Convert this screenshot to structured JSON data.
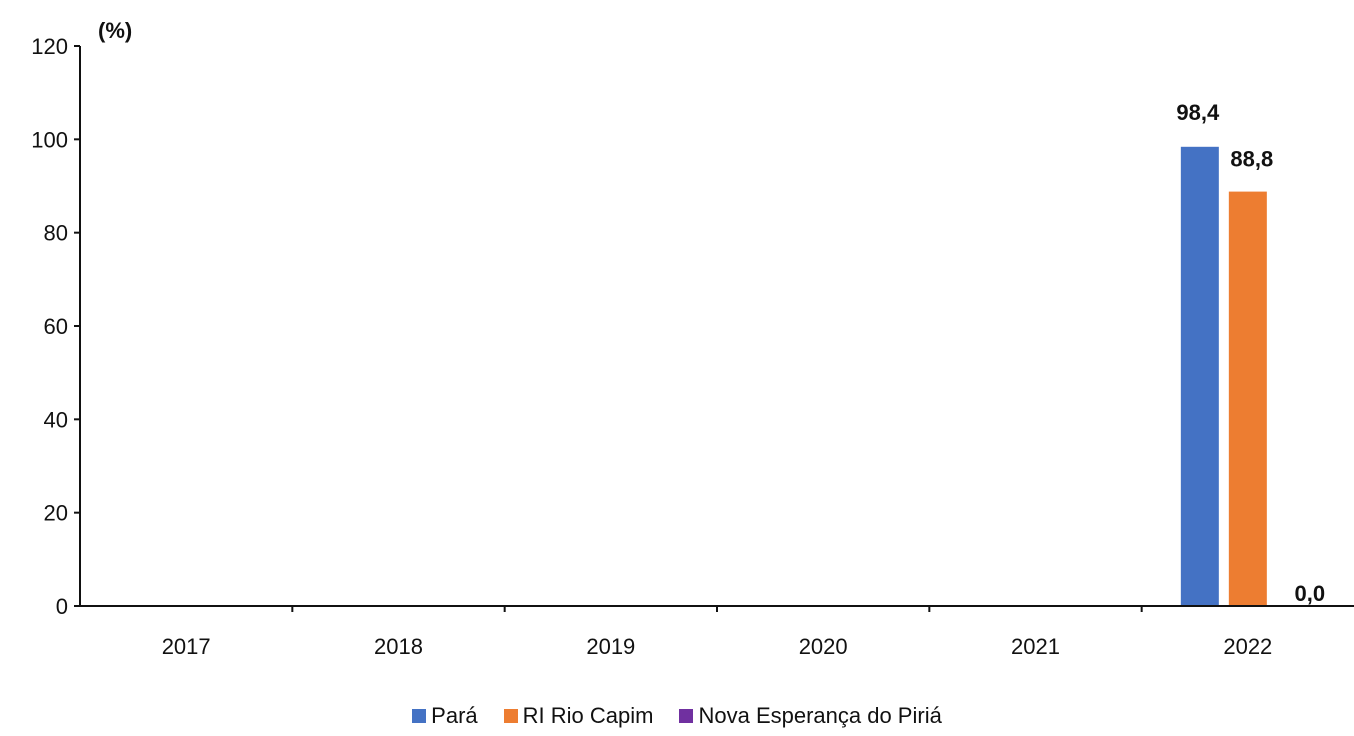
{
  "chart_data": {
    "type": "bar",
    "ylabel": "(%)",
    "categories": [
      "2017",
      "2018",
      "2019",
      "2020",
      "2021",
      "2022"
    ],
    "ylim": [
      0,
      120
    ],
    "yticks": [
      "0",
      "20",
      "40",
      "60",
      "80",
      "100",
      "120"
    ],
    "legend_position": "bottom",
    "grid": false,
    "series": [
      {
        "name": "Pará",
        "color": "#4472C4",
        "values": [
          null,
          null,
          null,
          null,
          null,
          98.4
        ],
        "labels": [
          "",
          "",
          "",
          "",
          "",
          "98,4"
        ]
      },
      {
        "name": "RI Rio Capim",
        "color": "#ED7D31",
        "values": [
          null,
          null,
          null,
          null,
          null,
          88.8
        ],
        "labels": [
          "",
          "",
          "",
          "",
          "",
          "88,8"
        ]
      },
      {
        "name": "Nova Esperança do Piriá",
        "color": "#7030A0",
        "values": [
          null,
          null,
          null,
          null,
          null,
          0.0
        ],
        "labels": [
          "",
          "",
          "",
          "",
          "",
          "0,0"
        ]
      }
    ]
  }
}
